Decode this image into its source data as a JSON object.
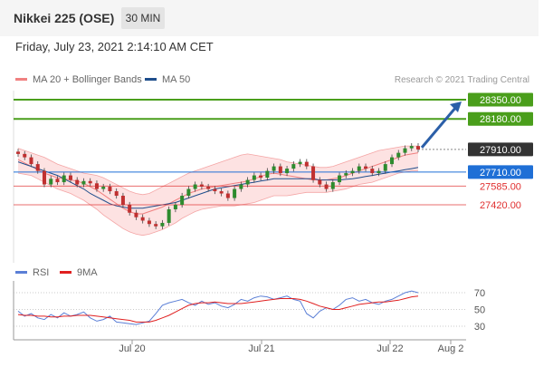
{
  "header": {
    "instrument": "Nikkei 225 (OSE)",
    "timeframe": "30 MIN",
    "datetime": "Friday, July 23, 2021 2:14:10 AM CET"
  },
  "legend_main": [
    {
      "label": "MA 20 + Bollinger Bands",
      "color": "#f08080"
    },
    {
      "label": "MA 50",
      "color": "#1f4e8c"
    }
  ],
  "credit": "Research © 2021 Trading Central",
  "legend_rsi": [
    {
      "label": "RSI",
      "color": "#5b7fd6"
    },
    {
      "label": "9MA",
      "color": "#e02020"
    }
  ],
  "chart_data": [
    {
      "type": "candlestick",
      "x_tick_labels": [
        "Jul 20",
        "Jul 21",
        "Jul 22",
        "Aug 2"
      ],
      "ylim": [
        27000,
        28500
      ],
      "levels": [
        {
          "value": 28350.0,
          "label": "28350.00",
          "style": "resistance",
          "color": "#4a9e1b"
        },
        {
          "value": 28180.0,
          "label": "28180.00",
          "style": "resistance",
          "color": "#4a9e1b"
        },
        {
          "value": 27910.0,
          "label": "27910.00",
          "style": "last-price",
          "color": "#333333"
        },
        {
          "value": 27710.0,
          "label": "27710.00",
          "style": "pivot",
          "color": "#1f6fd6"
        },
        {
          "value": 27585.0,
          "label": "27585.00",
          "style": "support",
          "color": "#e03030"
        },
        {
          "value": 27420.0,
          "label": "27420.00",
          "style": "support",
          "color": "#e03030"
        }
      ],
      "close": [
        27870,
        27840,
        27780,
        27720,
        27600,
        27650,
        27620,
        27680,
        27640,
        27600,
        27630,
        27610,
        27560,
        27580,
        27540,
        27500,
        27420,
        27350,
        27310,
        27280,
        27250,
        27230,
        27260,
        27380,
        27420,
        27500,
        27560,
        27600,
        27580,
        27560,
        27540,
        27520,
        27480,
        27560,
        27600,
        27640,
        27680,
        27660,
        27720,
        27760,
        27700,
        27740,
        27780,
        27800,
        27760,
        27640,
        27600,
        27560,
        27620,
        27680,
        27700,
        27720,
        27760,
        27740,
        27700,
        27720,
        27780,
        27840,
        27880,
        27920,
        27940,
        27910
      ],
      "ma20": [
        27820,
        27790,
        27760,
        27730,
        27700,
        27680,
        27660,
        27650,
        27640,
        27630,
        27610,
        27580,
        27550,
        27510,
        27470,
        27430,
        27390,
        27360,
        27340,
        27340,
        27360,
        27380,
        27400,
        27430,
        27460,
        27490,
        27520,
        27540,
        27560,
        27570,
        27580,
        27590,
        27600,
        27610,
        27620,
        27630,
        27650,
        27670,
        27690,
        27700,
        27690,
        27680,
        27670,
        27660,
        27650,
        27640,
        27640,
        27640,
        27650,
        27660,
        27680,
        27700,
        27720,
        27740,
        27760,
        27780,
        27800,
        27820,
        27840,
        27860,
        27870,
        27880
      ],
      "bb_upper": [
        27920,
        27900,
        27880,
        27860,
        27840,
        27810,
        27780,
        27760,
        27740,
        27720,
        27700,
        27690,
        27680,
        27660,
        27630,
        27600,
        27570,
        27540,
        27520,
        27510,
        27520,
        27550,
        27580,
        27610,
        27640,
        27670,
        27700,
        27720,
        27740,
        27760,
        27780,
        27800,
        27820,
        27840,
        27860,
        27870,
        27860,
        27850,
        27840,
        27830,
        27820,
        27800,
        27790,
        27780,
        27770,
        27760,
        27750,
        27750,
        27760,
        27780,
        27800,
        27820,
        27840,
        27860,
        27880,
        27900,
        27910,
        27920,
        27930,
        27940,
        27940,
        27940
      ],
      "bb_lower": [
        27700,
        27690,
        27680,
        27650,
        27620,
        27590,
        27560,
        27540,
        27520,
        27490,
        27460,
        27420,
        27380,
        27330,
        27290,
        27250,
        27210,
        27180,
        27160,
        27150,
        27160,
        27180,
        27200,
        27230,
        27260,
        27300,
        27330,
        27360,
        27380,
        27390,
        27400,
        27410,
        27410,
        27410,
        27420,
        27430,
        27440,
        27460,
        27480,
        27500,
        27500,
        27500,
        27510,
        27520,
        27530,
        27530,
        27530,
        27530,
        27540,
        27550,
        27560,
        27580,
        27600,
        27610,
        27620,
        27640,
        27660,
        27680,
        27700,
        27710,
        27720,
        27720
      ],
      "ma50": [
        27800,
        27780,
        27760,
        27740,
        27720,
        27700,
        27680,
        27650,
        27620,
        27590,
        27560,
        27520,
        27490,
        27460,
        27430,
        27410,
        27400,
        27390,
        27390,
        27390,
        27400,
        27410,
        27420,
        27430,
        27440,
        27460,
        27480,
        27500,
        27520,
        27540,
        27560,
        27570,
        27580,
        27590,
        27600,
        27610,
        27620,
        27630,
        27640,
        27650,
        27650,
        27650,
        27650,
        27650,
        27650,
        27650,
        27640,
        27640,
        27640,
        27640,
        27645,
        27650,
        27660,
        27670,
        27680,
        27690,
        27700,
        27710,
        27720,
        27730,
        27740,
        27750
      ],
      "projection": {
        "from": 27910,
        "to": 28350
      }
    },
    {
      "type": "line",
      "series": [
        {
          "name": "RSI"
        },
        {
          "name": "9MA"
        }
      ],
      "ylim": [
        20,
        80
      ],
      "y_tick_labels": [
        "70",
        "50",
        "30"
      ],
      "reference_levels": [
        70,
        50,
        30
      ],
      "rsi": [
        48,
        42,
        45,
        40,
        38,
        44,
        40,
        46,
        42,
        44,
        47,
        40,
        36,
        38,
        42,
        35,
        34,
        33,
        32,
        34,
        36,
        45,
        55,
        58,
        60,
        62,
        58,
        55,
        60,
        56,
        58,
        54,
        52,
        56,
        62,
        60,
        64,
        66,
        65,
        62,
        64,
        66,
        62,
        60,
        45,
        40,
        48,
        52,
        50,
        55,
        62,
        64,
        60,
        62,
        58,
        56,
        60,
        62,
        66,
        70,
        72,
        70
      ],
      "rsi_ma9": [
        44,
        43,
        43,
        42,
        42,
        41,
        41,
        42,
        42,
        43,
        43,
        43,
        42,
        41,
        40,
        39,
        38,
        37,
        35,
        35,
        35,
        37,
        40,
        43,
        47,
        51,
        55,
        57,
        58,
        58,
        59,
        58,
        57,
        57,
        57,
        58,
        59,
        60,
        61,
        62,
        63,
        63,
        63,
        62,
        60,
        57,
        54,
        52,
        50,
        50,
        52,
        54,
        56,
        57,
        58,
        59,
        59,
        60,
        61,
        63,
        65,
        66
      ]
    }
  ]
}
